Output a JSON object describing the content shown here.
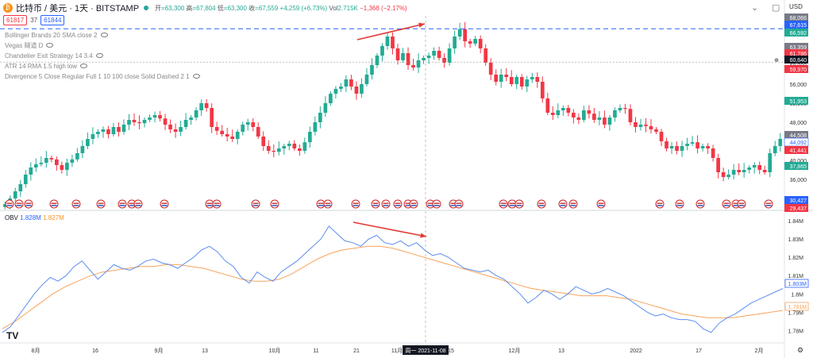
{
  "header": {
    "symbol": "比特币 / 美元 · 1天 · BITSTAMP",
    "open_label": "开",
    "open": "=63,300",
    "high_label": "高",
    "high": "=67,804",
    "low_label": "低",
    "low": "=63,300",
    "close_label": "收",
    "close": "=67,559",
    "change": "+4,259 (+6.73%)",
    "vol_label": "Vol",
    "vol": "2.715K",
    "vol_change": "−1,368 (−2.17%)",
    "currency": "USD"
  },
  "pricebox": {
    "sell": "61817",
    "spread": "37",
    "buy": "61844"
  },
  "indicators": [
    "Bollinger Brands 20 SMA close 2",
    "Vegas 隧道 D",
    "Chandelier Exit Strategy 14 3.4",
    "ATR 14 RMA 1.5 high low",
    "Divergence 5 Close Regular Full 1 10 100 close Solid Dashed 2 1"
  ],
  "obv_legend": {
    "name": "OBV",
    "v1": "1.828M",
    "v2": "1.827M"
  },
  "price_axis": {
    "ticks": [
      "64,000",
      "60,000",
      "56,000",
      "52,000",
      "48,000",
      "44,000",
      "40,000",
      "36,000",
      "32,000"
    ],
    "tags": [
      {
        "text": "68,066",
        "color": "#787b86"
      },
      {
        "text": "67,615",
        "color": "#2962ff"
      },
      {
        "text": "66,592",
        "color": "#22ab94"
      },
      {
        "text": "63,359",
        "color": "#787b86"
      },
      {
        "text": "61,786",
        "color": "#f23645"
      },
      {
        "text": "60,640",
        "color": "#131722"
      },
      {
        "text": "59,970",
        "color": "#f23645"
      },
      {
        "text": "51,953",
        "color": "#22ab94"
      },
      {
        "text": "44,508",
        "color": "#787b86"
      },
      {
        "text": "44,092",
        "color": "#ffffff"
      },
      {
        "text": "41,441",
        "color": "#f23645"
      },
      {
        "text": "37,865",
        "color": "#22ab94"
      },
      {
        "text": "30,427",
        "color": "#2962ff"
      },
      {
        "text": "29,437",
        "color": "#f23645"
      }
    ]
  },
  "obv_axis": {
    "ticks": [
      "1.84M",
      "1.83M",
      "1.82M",
      "1.81M",
      "1.8M",
      "1.79M",
      "1.78M"
    ],
    "tags": [
      {
        "text": "1.803M",
        "color": "#2962ff"
      },
      {
        "text": "1.791M",
        "color": "#f7931a"
      }
    ]
  },
  "time_axis": {
    "labels": [
      "8月",
      "16",
      "9月",
      "13",
      "10月",
      "11",
      "21",
      "11月",
      "15",
      "12月",
      "13",
      "2022",
      "17",
      "2月"
    ],
    "crosshair_label": "周一 2021-11-08"
  },
  "colors": {
    "up": "#22ab94",
    "down": "#f23645",
    "obv": "#5b8def",
    "obv_ma": "#f7a35c",
    "accent": "#2962ff"
  },
  "chart_data": [
    {
      "type": "candlestick",
      "title": "比特币 / 美元 · 1天 · BITSTAMP",
      "ylim": [
        30000,
        69000
      ],
      "x_range": [
        "2021-07-20",
        "2022-02-07"
      ],
      "series": [
        {
          "values": [
            30800,
            32000,
            33500,
            35000,
            37000,
            38500,
            39200,
            39500,
            40500,
            40200,
            39000,
            38000,
            39500,
            40200,
            41500,
            43000,
            44500,
            45500,
            46000,
            46500,
            45500,
            47000,
            46000,
            47500,
            48500,
            48000,
            47800,
            48500,
            49000,
            49500,
            48800,
            47500,
            46500,
            46000,
            47000,
            48500,
            49000,
            50500,
            52000,
            51000,
            47000,
            46200,
            45500,
            45000,
            44500,
            46000,
            47500,
            48000,
            47000,
            45000,
            43000,
            42000,
            41800,
            42500,
            43000,
            43500,
            42500,
            42000,
            43800,
            46000,
            48000,
            50000,
            52000,
            54000,
            55000,
            55500,
            57000,
            55500,
            54000,
            56000,
            58000,
            60000,
            62000,
            64000,
            66000,
            63500,
            61000,
            62500,
            60000,
            59500,
            61000,
            61500,
            62000,
            63000,
            61500,
            60500,
            63500,
            66000,
            67559,
            65000,
            64500,
            65500,
            63500,
            60500,
            58000,
            56500,
            58000,
            57500,
            56000,
            57500,
            55500,
            57000,
            57500,
            56500,
            53000,
            50000,
            49500,
            50500,
            51000,
            50000,
            49000,
            48500,
            50500,
            49800,
            48500,
            49000,
            47500,
            49000,
            50500,
            51000,
            50800,
            48000,
            47000,
            47500,
            47200,
            46500,
            46000,
            44000,
            42500,
            43000,
            42000,
            43000,
            43500,
            43800,
            42500,
            43000,
            42500,
            40500,
            37500,
            36500,
            37000,
            38000,
            37500,
            38000,
            38500,
            39000,
            38000,
            37500,
            41500,
            43000,
            44508
          ]
        }
      ]
    },
    {
      "type": "line",
      "title": "OBV",
      "ylim": [
        1.775,
        1.84
      ],
      "series": [
        {
          "name": "OBV",
          "values": [
            1.779,
            1.782,
            1.788,
            1.794,
            1.8,
            1.805,
            1.809,
            1.807,
            1.81,
            1.815,
            1.818,
            1.813,
            1.808,
            1.812,
            1.816,
            1.814,
            1.813,
            1.815,
            1.818,
            1.819,
            1.817,
            1.816,
            1.814,
            1.817,
            1.82,
            1.824,
            1.826,
            1.823,
            1.818,
            1.815,
            1.809,
            1.806,
            1.812,
            1.809,
            1.807,
            1.812,
            1.815,
            1.818,
            1.822,
            1.826,
            1.83,
            1.837,
            1.833,
            1.829,
            1.828,
            1.826,
            1.83,
            1.832,
            1.828,
            1.827,
            1.829,
            1.826,
            1.828,
            1.824,
            1.821,
            1.822,
            1.82,
            1.817,
            1.814,
            1.813,
            1.812,
            1.813,
            1.81,
            1.808,
            1.804,
            1.8,
            1.795,
            1.798,
            1.802,
            1.8,
            1.797,
            1.8,
            1.804,
            1.802,
            1.8,
            1.801,
            1.803,
            1.801,
            1.799,
            1.796,
            1.793,
            1.79,
            1.788,
            1.789,
            1.787,
            1.786,
            1.786,
            1.785,
            1.781,
            1.779,
            1.784,
            1.787,
            1.789,
            1.792,
            1.795,
            1.797,
            1.799,
            1.801,
            1.803
          ]
        },
        {
          "name": "",
          "values": [
            1.781,
            1.785,
            1.79,
            1.795,
            1.8,
            1.804,
            1.807,
            1.81,
            1.812,
            1.813,
            1.814,
            1.815,
            1.815,
            1.816,
            1.816,
            1.815,
            1.814,
            1.812,
            1.81,
            1.808,
            1.807,
            1.807,
            1.808,
            1.811,
            1.815,
            1.819,
            1.822,
            1.824,
            1.825,
            1.826,
            1.826,
            1.825,
            1.823,
            1.821,
            1.819,
            1.817,
            1.815,
            1.813,
            1.811,
            1.809,
            1.807,
            1.805,
            1.803,
            1.802,
            1.801,
            1.8,
            1.799,
            1.799,
            1.799,
            1.798,
            1.797,
            1.795,
            1.793,
            1.791,
            1.789,
            1.788,
            1.787,
            1.787,
            1.787,
            1.788,
            1.789,
            1.79,
            1.791
          ]
        }
      ]
    }
  ]
}
